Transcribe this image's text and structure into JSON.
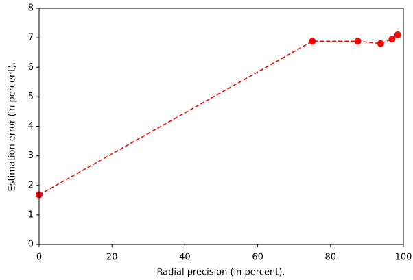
{
  "chart_data": {
    "type": "line",
    "xlabel": "Radial precision (in percent).",
    "ylabel": "Estimation error (in percent).",
    "x": [
      0,
      75,
      87.5,
      93.75,
      96.875,
      98.4375
    ],
    "series": [
      {
        "color": "#ff0000",
        "values": [
          1.68,
          6.88,
          6.88,
          6.8,
          6.95,
          7.1
        ]
      }
    ],
    "xlim": [
      0,
      100
    ],
    "xticks": [
      0,
      20,
      40,
      60,
      80,
      100
    ],
    "ylim": [
      0,
      8
    ],
    "yticks": [
      0,
      1,
      2,
      3,
      4,
      5,
      6,
      7,
      8
    ],
    "line_style": "dashed",
    "markers": true,
    "grid": false
  }
}
